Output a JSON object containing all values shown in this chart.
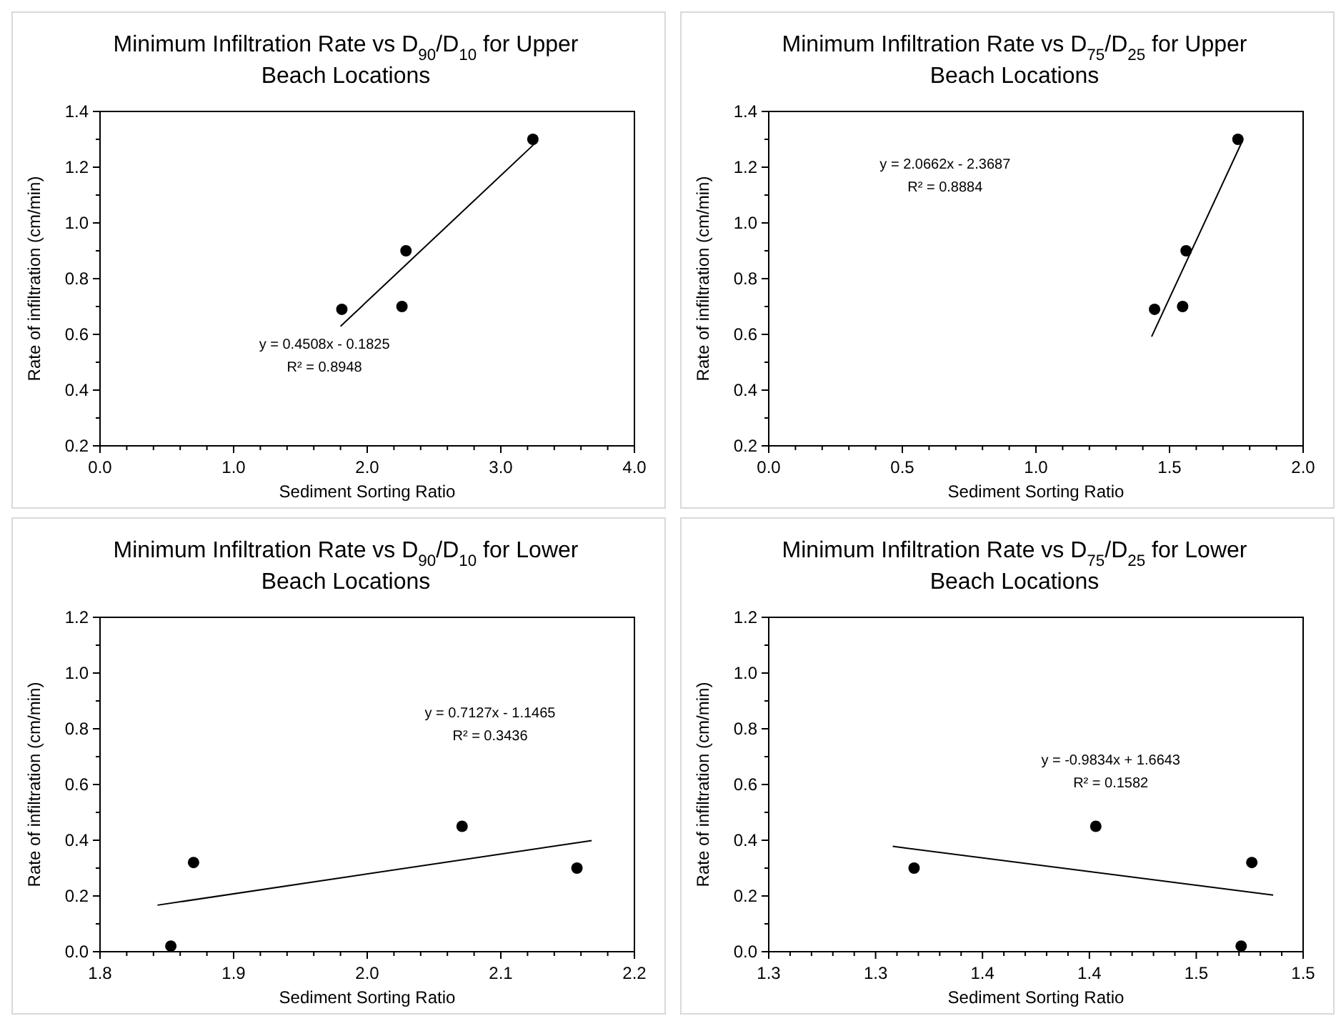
{
  "chart_data": [
    {
      "type": "scatter",
      "title": "Minimum Infiltration Rate vs D$_{90}$/D$_{10}$ for Upper Beach Locations",
      "xlabel": "Sediment Sorting Ratio",
      "ylabel": "Rate of infiltration (cm/min)",
      "annotations": [
        "y = 0.4508x - 0.1825",
        "R² = 0.8948"
      ],
      "xlim": [
        0,
        4
      ],
      "xticks": [
        {
          "value": 0,
          "label": "0.0"
        },
        {
          "value": 0.2,
          "label": null
        },
        {
          "value": 0.4,
          "label": null
        },
        {
          "value": 0.6,
          "label": null
        },
        {
          "value": 0.8,
          "label": null
        },
        {
          "value": 1,
          "label": "1.0"
        },
        {
          "value": 1.2,
          "label": null
        },
        {
          "value": 1.4,
          "label": null
        },
        {
          "value": 1.6,
          "label": null
        },
        {
          "value": 1.8,
          "label": null
        },
        {
          "value": 2,
          "label": "2.0"
        },
        {
          "value": 2.2,
          "label": null
        },
        {
          "value": 2.4,
          "label": null
        },
        {
          "value": 2.6,
          "label": null
        },
        {
          "value": 2.8,
          "label": null
        },
        {
          "value": 3,
          "label": "3.0"
        },
        {
          "value": 3.2,
          "label": null
        },
        {
          "value": 3.4,
          "label": null
        },
        {
          "value": 3.6,
          "label": null
        },
        {
          "value": 3.8,
          "label": null
        },
        {
          "value": 4,
          "label": "4.0"
        }
      ],
      "ylim": [
        0.2,
        1.4
      ],
      "yticks": [
        0.2,
        {
          "value": 0.3,
          "label": null
        },
        0.4,
        {
          "value": 0.5,
          "label": null
        },
        0.6,
        {
          "value": 0.7,
          "label": null
        },
        0.8,
        {
          "value": 0.9,
          "label": null
        },
        {
          "value": 1,
          "label": "1.0"
        },
        {
          "value": 1.1,
          "label": null
        },
        1.2,
        {
          "value": 1.3,
          "label": null
        },
        1.4
      ],
      "grid": false,
      "marker": "circle",
      "series": [
        {
          "color": "#000000",
          "x": [
            1.81,
            2.26,
            2.29,
            3.24
          ],
          "values": [
            0.69,
            0.7,
            0.9,
            1.3
          ]
        },
        {
          "type": "line",
          "color": "#000000",
          "line_style": "solid",
          "marker": "none",
          "x": [
            1.8,
            3.25
          ],
          "values": [
            0.629,
            1.283
          ]
        }
      ]
    },
    {
      "type": "scatter",
      "title": "Minimum Infiltration Rate vs D$_{75}$/D$_{25}$ for Upper Beach Locations",
      "xlabel": "Sediment Sorting Ratio",
      "ylabel": "Rate of infiltration (cm/min)",
      "annotations": [
        "y = 2.0662x - 2.3687",
        "R² = 0.8884"
      ],
      "xlim": [
        0,
        2
      ],
      "xticks": [
        {
          "value": 0,
          "label": "0.0"
        },
        {
          "value": 0.1,
          "label": null
        },
        {
          "value": 0.2,
          "label": null
        },
        {
          "value": 0.3,
          "label": null
        },
        {
          "value": 0.4,
          "label": null
        },
        0.5,
        {
          "value": 0.6,
          "label": null
        },
        {
          "value": 0.7,
          "label": null
        },
        {
          "value": 0.8,
          "label": null
        },
        {
          "value": 0.9,
          "label": null
        },
        {
          "value": 1,
          "label": "1.0"
        },
        {
          "value": 1.1,
          "label": null
        },
        {
          "value": 1.2,
          "label": null
        },
        {
          "value": 1.3,
          "label": null
        },
        {
          "value": 1.4,
          "label": null
        },
        1.5,
        {
          "value": 1.6,
          "label": null
        },
        {
          "value": 1.7,
          "label": null
        },
        {
          "value": 1.8,
          "label": null
        },
        {
          "value": 1.9,
          "label": null
        },
        {
          "value": 2,
          "label": "2.0"
        }
      ],
      "ylim": [
        0.2,
        1.4
      ],
      "yticks": [
        0.2,
        {
          "value": 0.3,
          "label": null
        },
        0.4,
        {
          "value": 0.5,
          "label": null
        },
        0.6,
        {
          "value": 0.7,
          "label": null
        },
        0.8,
        {
          "value": 0.9,
          "label": null
        },
        {
          "value": 1,
          "label": "1.0"
        },
        {
          "value": 1.1,
          "label": null
        },
        1.2,
        {
          "value": 1.3,
          "label": null
        },
        1.4
      ],
      "grid": false,
      "marker": "circle",
      "series": [
        {
          "color": "#000000",
          "x": [
            1.444,
            1.549,
            1.562,
            1.756
          ],
          "values": [
            0.69,
            0.7,
            0.9,
            1.3
          ]
        },
        {
          "type": "line",
          "color": "#000000",
          "line_style": "solid",
          "marker": "none",
          "x": [
            1.433,
            1.772
          ],
          "values": [
            0.592,
            1.293
          ]
        }
      ]
    },
    {
      "type": "scatter",
      "title": "Minimum Infiltration Rate vs D$_{90}$/D$_{10}$ for Lower Beach Locations",
      "xlabel": "Sediment Sorting Ratio",
      "ylabel": "Rate of infiltration (cm/min)",
      "annotations": [
        "y = 0.7127x - 1.1465",
        "R² = 0.3436"
      ],
      "xlim": [
        1.8,
        2.2
      ],
      "xticks": [
        1.8,
        {
          "value": 1.82,
          "label": null
        },
        {
          "value": 1.84,
          "label": null
        },
        {
          "value": 1.86,
          "label": null
        },
        {
          "value": 1.88,
          "label": null
        },
        1.9,
        {
          "value": 1.92,
          "label": null
        },
        {
          "value": 1.94,
          "label": null
        },
        {
          "value": 1.96,
          "label": null
        },
        {
          "value": 1.98,
          "label": null
        },
        {
          "value": 2,
          "label": "2.0"
        },
        {
          "value": 2.02,
          "label": null
        },
        {
          "value": 2.04,
          "label": null
        },
        {
          "value": 2.06,
          "label": null
        },
        {
          "value": 2.08,
          "label": null
        },
        2.1,
        {
          "value": 2.12,
          "label": null
        },
        {
          "value": 2.14,
          "label": null
        },
        {
          "value": 2.16,
          "label": null
        },
        {
          "value": 2.18,
          "label": null
        },
        2.2
      ],
      "ylim": [
        0,
        1.2
      ],
      "yticks": [
        {
          "value": 0,
          "label": "0.0"
        },
        {
          "value": 0.1,
          "label": null
        },
        0.2,
        {
          "value": 0.3,
          "label": null
        },
        0.4,
        {
          "value": 0.5,
          "label": null
        },
        0.6,
        {
          "value": 0.7,
          "label": null
        },
        0.8,
        {
          "value": 0.9,
          "label": null
        },
        {
          "value": 1,
          "label": "1.0"
        },
        {
          "value": 1.1,
          "label": null
        },
        1.2
      ],
      "grid": false,
      "marker": "circle",
      "series": [
        {
          "color": "#000000",
          "x": [
            1.853,
            1.87,
            2.071,
            2.157
          ],
          "values": [
            0.02,
            0.32,
            0.45,
            0.3
          ]
        },
        {
          "type": "line",
          "color": "#000000",
          "line_style": "solid",
          "marker": "none",
          "x": [
            1.843,
            2.168
          ],
          "values": [
            0.167,
            0.399
          ]
        }
      ]
    },
    {
      "type": "scatter",
      "title": "Minimum Infiltration Rate vs D$_{75}$/D$_{25}$ for Lower Beach Locations",
      "xlabel": "Sediment Sorting Ratio",
      "ylabel": "Rate of infiltration (cm/min)",
      "annotations": [
        "y = -0.9834x + 1.6643",
        "R² = 0.1582"
      ],
      "xlim": [
        1.25,
        1.5
      ],
      "xticks": [
        {
          "value": 1.25,
          "label": "1.3"
        },
        {
          "value": 1.26,
          "label": null
        },
        {
          "value": 1.27,
          "label": null
        },
        {
          "value": 1.28,
          "label": null
        },
        {
          "value": 1.29,
          "label": null
        },
        {
          "value": 1.3,
          "label": "1.3"
        },
        {
          "value": 1.31,
          "label": null
        },
        {
          "value": 1.32,
          "label": null
        },
        {
          "value": 1.33,
          "label": null
        },
        {
          "value": 1.34,
          "label": null
        },
        {
          "value": 1.35,
          "label": "1.4"
        },
        {
          "value": 1.36,
          "label": null
        },
        {
          "value": 1.37,
          "label": null
        },
        {
          "value": 1.38,
          "label": null
        },
        {
          "value": 1.39,
          "label": null
        },
        {
          "value": 1.4,
          "label": "1.4"
        },
        {
          "value": 1.41,
          "label": null
        },
        {
          "value": 1.42,
          "label": null
        },
        {
          "value": 1.43,
          "label": null
        },
        {
          "value": 1.44,
          "label": null
        },
        {
          "value": 1.45,
          "label": "1.5"
        },
        {
          "value": 1.46,
          "label": null
        },
        {
          "value": 1.47,
          "label": null
        },
        {
          "value": 1.48,
          "label": null
        },
        {
          "value": 1.49,
          "label": null
        },
        {
          "value": 1.5,
          "label": "1.5"
        }
      ],
      "ylim": [
        0,
        1.2
      ],
      "yticks": [
        {
          "value": 0,
          "label": "0.0"
        },
        {
          "value": 0.1,
          "label": null
        },
        0.2,
        {
          "value": 0.3,
          "label": null
        },
        0.4,
        {
          "value": 0.5,
          "label": null
        },
        0.6,
        {
          "value": 0.7,
          "label": null
        },
        0.8,
        {
          "value": 0.9,
          "label": null
        },
        {
          "value": 1,
          "label": "1.0"
        },
        {
          "value": 1.1,
          "label": null
        },
        1.2
      ],
      "grid": false,
      "marker": "circle",
      "series": [
        {
          "color": "#000000",
          "x": [
            1.318,
            1.403,
            1.471,
            1.476
          ],
          "values": [
            0.3,
            0.45,
            0.02,
            0.32
          ]
        },
        {
          "type": "line",
          "color": "#000000",
          "line_style": "solid",
          "marker": "none",
          "x": [
            1.308,
            1.486
          ],
          "values": [
            0.378,
            0.203
          ]
        }
      ]
    }
  ]
}
